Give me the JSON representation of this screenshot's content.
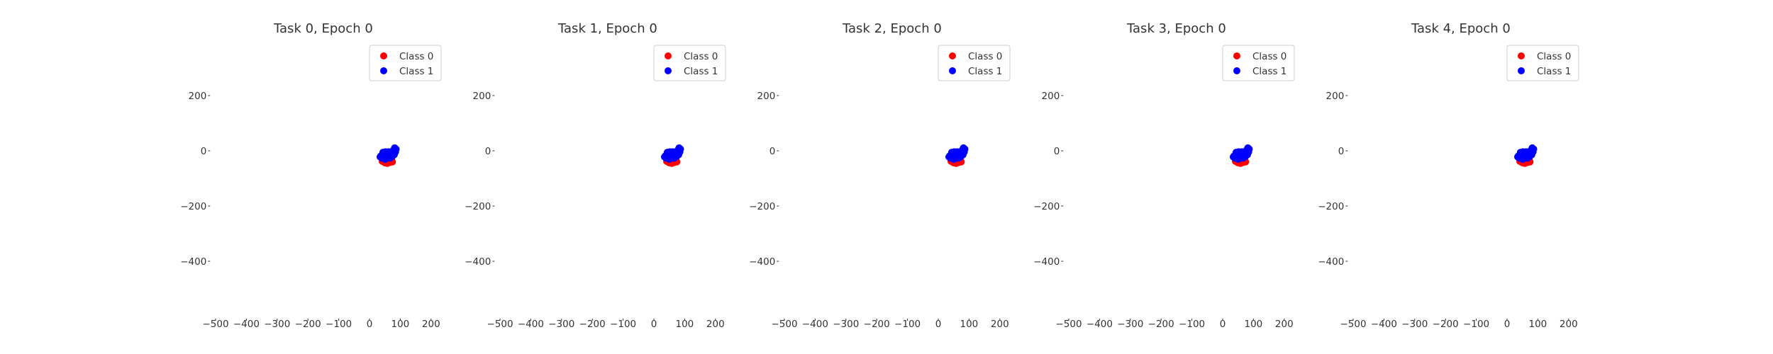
{
  "chart_data": [
    {
      "type": "scatter",
      "title": "Task 0, Epoch 0",
      "xlabel": "",
      "ylabel": "",
      "xlim": [
        -520,
        250
      ],
      "ylim": [
        -600,
        300
      ],
      "xticks": [
        "−500",
        "−400",
        "−300",
        "−200",
        "−100",
        "0",
        "100",
        "200"
      ],
      "yticks": [
        "200",
        "0",
        "−200",
        "−400"
      ],
      "grid": false,
      "legend_position": "upper-right",
      "series": [
        {
          "name": "Class 0",
          "color": "#ff0000",
          "points": [
            [
              42,
              -38
            ],
            [
              50,
              -43
            ],
            [
              58,
              -45
            ],
            [
              66,
              -42
            ],
            [
              72,
              -36
            ],
            [
              46,
              -28
            ],
            [
              55,
              -34
            ],
            [
              63,
              -37
            ],
            [
              70,
              -30
            ],
            [
              52,
              -22
            ],
            [
              61,
              -27
            ],
            [
              68,
              -24
            ],
            [
              48,
              -33
            ],
            [
              74,
              -40
            ],
            [
              57,
              -40
            ]
          ]
        },
        {
          "name": "Class 1",
          "color": "#0000ff",
          "points": [
            [
              35,
              -22
            ],
            [
              42,
              -14
            ],
            [
              48,
              -24
            ],
            [
              54,
              -12
            ],
            [
              60,
              -18
            ],
            [
              66,
              -10
            ],
            [
              72,
              -4
            ],
            [
              78,
              2
            ],
            [
              84,
              -4
            ],
            [
              80,
              -14
            ],
            [
              74,
              -20
            ],
            [
              66,
              -26
            ],
            [
              58,
              -26
            ],
            [
              50,
              -30
            ],
            [
              44,
              -6
            ],
            [
              62,
              -4
            ],
            [
              70,
              -12
            ],
            [
              86,
              6
            ],
            [
              76,
              -8
            ],
            [
              56,
              -20
            ],
            [
              40,
              -26
            ],
            [
              82,
              10
            ],
            [
              64,
              -16
            ],
            [
              52,
              -4
            ],
            [
              38,
              -18
            ]
          ]
        }
      ]
    },
    {
      "type": "scatter",
      "title": "Task 1, Epoch 0",
      "xlabel": "",
      "ylabel": "",
      "xlim": [
        -520,
        250
      ],
      "ylim": [
        -600,
        300
      ],
      "xticks": [
        "−500",
        "−400",
        "−300",
        "−200",
        "−100",
        "0",
        "100",
        "200"
      ],
      "yticks": [
        "200",
        "0",
        "−200",
        "−400"
      ],
      "grid": false,
      "legend_position": "upper-right",
      "series": [
        {
          "name": "Class 0",
          "color": "#ff0000",
          "points": [
            [
              42,
              -38
            ],
            [
              50,
              -43
            ],
            [
              58,
              -45
            ],
            [
              66,
              -42
            ],
            [
              72,
              -36
            ],
            [
              46,
              -28
            ],
            [
              55,
              -34
            ],
            [
              63,
              -37
            ],
            [
              70,
              -30
            ],
            [
              52,
              -22
            ],
            [
              61,
              -27
            ],
            [
              68,
              -24
            ],
            [
              48,
              -33
            ],
            [
              74,
              -40
            ],
            [
              57,
              -40
            ]
          ]
        },
        {
          "name": "Class 1",
          "color": "#0000ff",
          "points": [
            [
              35,
              -22
            ],
            [
              42,
              -14
            ],
            [
              48,
              -24
            ],
            [
              54,
              -12
            ],
            [
              60,
              -18
            ],
            [
              66,
              -10
            ],
            [
              72,
              -4
            ],
            [
              78,
              2
            ],
            [
              84,
              -4
            ],
            [
              80,
              -14
            ],
            [
              74,
              -20
            ],
            [
              66,
              -26
            ],
            [
              58,
              -26
            ],
            [
              50,
              -30
            ],
            [
              44,
              -6
            ],
            [
              62,
              -4
            ],
            [
              70,
              -12
            ],
            [
              86,
              6
            ],
            [
              76,
              -8
            ],
            [
              56,
              -20
            ],
            [
              40,
              -26
            ],
            [
              82,
              10
            ],
            [
              64,
              -16
            ],
            [
              52,
              -4
            ],
            [
              38,
              -18
            ]
          ]
        }
      ]
    },
    {
      "type": "scatter",
      "title": "Task 2, Epoch 0",
      "xlabel": "",
      "ylabel": "",
      "xlim": [
        -520,
        250
      ],
      "ylim": [
        -600,
        300
      ],
      "xticks": [
        "−500",
        "−400",
        "−300",
        "−200",
        "−100",
        "0",
        "100",
        "200"
      ],
      "yticks": [
        "200",
        "0",
        "−200",
        "−400"
      ],
      "grid": false,
      "legend_position": "upper-right",
      "series": [
        {
          "name": "Class 0",
          "color": "#ff0000",
          "points": [
            [
              42,
              -38
            ],
            [
              50,
              -43
            ],
            [
              58,
              -45
            ],
            [
              66,
              -42
            ],
            [
              72,
              -36
            ],
            [
              46,
              -28
            ],
            [
              55,
              -34
            ],
            [
              63,
              -37
            ],
            [
              70,
              -30
            ],
            [
              52,
              -22
            ],
            [
              61,
              -27
            ],
            [
              68,
              -24
            ],
            [
              48,
              -33
            ],
            [
              74,
              -40
            ],
            [
              57,
              -40
            ]
          ]
        },
        {
          "name": "Class 1",
          "color": "#0000ff",
          "points": [
            [
              35,
              -22
            ],
            [
              42,
              -14
            ],
            [
              48,
              -24
            ],
            [
              54,
              -12
            ],
            [
              60,
              -18
            ],
            [
              66,
              -10
            ],
            [
              72,
              -4
            ],
            [
              78,
              2
            ],
            [
              84,
              -4
            ],
            [
              80,
              -14
            ],
            [
              74,
              -20
            ],
            [
              66,
              -26
            ],
            [
              58,
              -26
            ],
            [
              50,
              -30
            ],
            [
              44,
              -6
            ],
            [
              62,
              -4
            ],
            [
              70,
              -12
            ],
            [
              86,
              6
            ],
            [
              76,
              -8
            ],
            [
              56,
              -20
            ],
            [
              40,
              -26
            ],
            [
              82,
              10
            ],
            [
              64,
              -16
            ],
            [
              52,
              -4
            ],
            [
              38,
              -18
            ]
          ]
        }
      ]
    },
    {
      "type": "scatter",
      "title": "Task 3, Epoch 0",
      "xlabel": "",
      "ylabel": "",
      "xlim": [
        -520,
        250
      ],
      "ylim": [
        -600,
        300
      ],
      "xticks": [
        "−500",
        "−400",
        "−300",
        "−200",
        "−100",
        "0",
        "100",
        "200"
      ],
      "yticks": [
        "200",
        "0",
        "−200",
        "−400"
      ],
      "grid": false,
      "legend_position": "upper-right",
      "series": [
        {
          "name": "Class 0",
          "color": "#ff0000",
          "points": [
            [
              42,
              -38
            ],
            [
              50,
              -43
            ],
            [
              58,
              -45
            ],
            [
              66,
              -42
            ],
            [
              72,
              -36
            ],
            [
              46,
              -28
            ],
            [
              55,
              -34
            ],
            [
              63,
              -37
            ],
            [
              70,
              -30
            ],
            [
              52,
              -22
            ],
            [
              61,
              -27
            ],
            [
              68,
              -24
            ],
            [
              48,
              -33
            ],
            [
              74,
              -40
            ],
            [
              57,
              -40
            ]
          ]
        },
        {
          "name": "Class 1",
          "color": "#0000ff",
          "points": [
            [
              35,
              -22
            ],
            [
              42,
              -14
            ],
            [
              48,
              -24
            ],
            [
              54,
              -12
            ],
            [
              60,
              -18
            ],
            [
              66,
              -10
            ],
            [
              72,
              -4
            ],
            [
              78,
              2
            ],
            [
              84,
              -4
            ],
            [
              80,
              -14
            ],
            [
              74,
              -20
            ],
            [
              66,
              -26
            ],
            [
              58,
              -26
            ],
            [
              50,
              -30
            ],
            [
              44,
              -6
            ],
            [
              62,
              -4
            ],
            [
              70,
              -12
            ],
            [
              86,
              6
            ],
            [
              76,
              -8
            ],
            [
              56,
              -20
            ],
            [
              40,
              -26
            ],
            [
              82,
              10
            ],
            [
              64,
              -16
            ],
            [
              52,
              -4
            ],
            [
              38,
              -18
            ]
          ]
        }
      ]
    },
    {
      "type": "scatter",
      "title": "Task 4, Epoch 0",
      "xlabel": "",
      "ylabel": "",
      "xlim": [
        -520,
        250
      ],
      "ylim": [
        -600,
        300
      ],
      "xticks": [
        "−500",
        "−400",
        "−300",
        "−200",
        "−100",
        "0",
        "100",
        "200"
      ],
      "yticks": [
        "200",
        "0",
        "−200",
        "−400"
      ],
      "grid": false,
      "legend_position": "upper-right",
      "series": [
        {
          "name": "Class 0",
          "color": "#ff0000",
          "points": [
            [
              42,
              -38
            ],
            [
              50,
              -43
            ],
            [
              58,
              -45
            ],
            [
              66,
              -42
            ],
            [
              72,
              -36
            ],
            [
              46,
              -28
            ],
            [
              55,
              -34
            ],
            [
              63,
              -37
            ],
            [
              70,
              -30
            ],
            [
              52,
              -22
            ],
            [
              61,
              -27
            ],
            [
              68,
              -24
            ],
            [
              48,
              -33
            ],
            [
              74,
              -40
            ],
            [
              57,
              -40
            ]
          ]
        },
        {
          "name": "Class 1",
          "color": "#0000ff",
          "points": [
            [
              35,
              -22
            ],
            [
              42,
              -14
            ],
            [
              48,
              -24
            ],
            [
              54,
              -12
            ],
            [
              60,
              -18
            ],
            [
              66,
              -10
            ],
            [
              72,
              -4
            ],
            [
              78,
              2
            ],
            [
              84,
              -4
            ],
            [
              80,
              -14
            ],
            [
              74,
              -20
            ],
            [
              66,
              -26
            ],
            [
              58,
              -26
            ],
            [
              50,
              -30
            ],
            [
              44,
              -6
            ],
            [
              62,
              -4
            ],
            [
              70,
              -12
            ],
            [
              86,
              6
            ],
            [
              76,
              -8
            ],
            [
              56,
              -20
            ],
            [
              40,
              -26
            ],
            [
              82,
              10
            ],
            [
              64,
              -16
            ],
            [
              52,
              -4
            ],
            [
              38,
              -18
            ]
          ]
        }
      ]
    }
  ]
}
